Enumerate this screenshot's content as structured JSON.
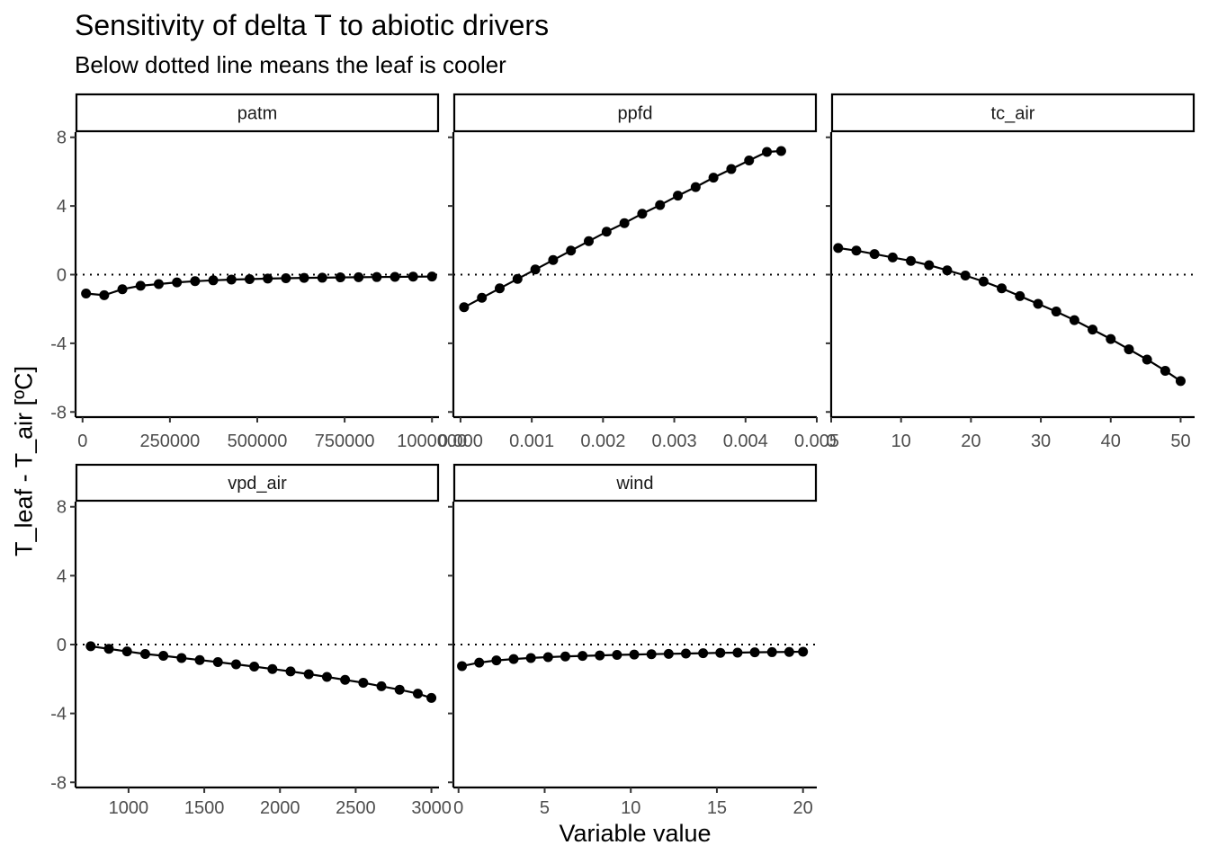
{
  "chart_data": {
    "type": "line",
    "title": "Sensitivity of delta T to abiotic drivers",
    "subtitle": "Below dotted line means the leaf is cooler",
    "xlabel": "Variable value",
    "ylabel": "T_leaf - T_air [ºC]",
    "ylim": [
      -8,
      8
    ],
    "yticks": [
      -8,
      -4,
      0,
      4,
      8
    ],
    "reference_line": {
      "y": 0,
      "style": "dotted"
    },
    "grid": false,
    "facets": [
      {
        "name": "patm",
        "xlim": [
          -20000,
          1020000
        ],
        "xticks": [
          0,
          250000,
          500000,
          750000,
          1000000
        ],
        "xtick_labels": [
          "0",
          "250000",
          "500000",
          "750000",
          "1000000"
        ],
        "x": [
          10000,
          62000,
          114000,
          166000,
          218000,
          270000,
          322000,
          374000,
          426000,
          478000,
          530000,
          582000,
          634000,
          686000,
          738000,
          790000,
          842000,
          894000,
          946000,
          1000000
        ],
        "y": [
          -1.1,
          -1.2,
          -0.85,
          -0.65,
          -0.55,
          -0.45,
          -0.38,
          -0.33,
          -0.29,
          -0.26,
          -0.23,
          -0.21,
          -0.19,
          -0.18,
          -0.16,
          -0.15,
          -0.14,
          -0.13,
          -0.12,
          -0.11
        ]
      },
      {
        "name": "ppfd",
        "xlim": [
          -0.0001,
          0.005
        ],
        "xticks": [
          0,
          0.001,
          0.002,
          0.003,
          0.004,
          0.005
        ],
        "xtick_labels": [
          "0.000",
          "0.001",
          "0.002",
          "0.003",
          "0.004",
          "0.005"
        ],
        "x": [
          5e-05,
          0.0003,
          0.00055,
          0.0008,
          0.00105,
          0.0013,
          0.00155,
          0.0018,
          0.00205,
          0.0023,
          0.00255,
          0.0028,
          0.00305,
          0.0033,
          0.00355,
          0.0038,
          0.00405,
          0.0043,
          0.0045
        ],
        "y": [
          -1.9,
          -1.35,
          -0.8,
          -0.25,
          0.3,
          0.85,
          1.4,
          1.95,
          2.5,
          3.0,
          3.55,
          4.05,
          4.6,
          5.1,
          5.65,
          6.15,
          6.65,
          7.15,
          7.2
        ]
      },
      {
        "name": "tc_air",
        "xlim": [
          0,
          52
        ],
        "xticks": [
          0,
          10,
          20,
          30,
          40,
          50
        ],
        "xtick_labels": [
          "0",
          "10",
          "20",
          "30",
          "40",
          "50"
        ],
        "x": [
          1,
          3.6,
          6.2,
          8.8,
          11.4,
          14,
          16.6,
          19.2,
          21.8,
          24.4,
          27,
          29.6,
          32.2,
          34.8,
          37.4,
          40,
          42.6,
          45.2,
          47.8,
          50
        ],
        "y": [
          1.55,
          1.4,
          1.2,
          1.0,
          0.8,
          0.55,
          0.25,
          -0.05,
          -0.4,
          -0.8,
          -1.25,
          -1.7,
          -2.15,
          -2.65,
          -3.2,
          -3.75,
          -4.35,
          -4.95,
          -5.6,
          -6.2
        ]
      },
      {
        "name": "vpd_air",
        "xlim": [
          650,
          3050
        ],
        "xticks": [
          1000,
          1500,
          2000,
          2500,
          3000
        ],
        "xtick_labels": [
          "1000",
          "1500",
          "2000",
          "2500",
          "3000"
        ],
        "x": [
          750,
          870,
          990,
          1110,
          1230,
          1350,
          1470,
          1590,
          1710,
          1830,
          1950,
          2070,
          2190,
          2310,
          2430,
          2550,
          2670,
          2790,
          2910,
          3000
        ],
        "y": [
          -0.1,
          -0.25,
          -0.4,
          -0.55,
          -0.65,
          -0.78,
          -0.9,
          -1.02,
          -1.15,
          -1.28,
          -1.42,
          -1.56,
          -1.72,
          -1.88,
          -2.05,
          -2.22,
          -2.42,
          -2.62,
          -2.85,
          -3.1
        ]
      },
      {
        "name": "wind",
        "xlim": [
          -0.3,
          20.8
        ],
        "xticks": [
          0,
          5,
          10,
          15,
          20
        ],
        "xtick_labels": [
          "0",
          "5",
          "10",
          "15",
          "20"
        ],
        "x": [
          0.2,
          1.2,
          2.2,
          3.2,
          4.2,
          5.2,
          6.2,
          7.2,
          8.2,
          9.2,
          10.2,
          11.2,
          12.2,
          13.2,
          14.2,
          15.2,
          16.2,
          17.2,
          18.2,
          19.2,
          20
        ],
        "y": [
          -1.25,
          -1.05,
          -0.92,
          -0.84,
          -0.78,
          -0.73,
          -0.69,
          -0.66,
          -0.63,
          -0.6,
          -0.58,
          -0.56,
          -0.54,
          -0.52,
          -0.5,
          -0.48,
          -0.47,
          -0.45,
          -0.44,
          -0.43,
          -0.42
        ]
      }
    ]
  }
}
